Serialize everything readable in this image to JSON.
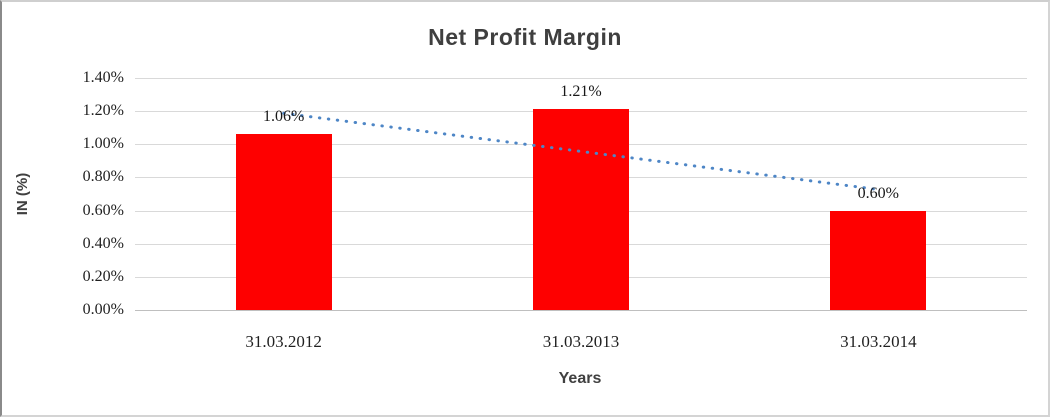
{
  "chart": {
    "title": "Net Profit Margin",
    "colors": {
      "bar": "#fe0000",
      "trendline": "#4e86c6",
      "gridline": "#d9d9d9",
      "axis_line": "#bfbfbf",
      "title_text": "#3f3f3f",
      "tick_text": "#1f1f1f"
    }
  },
  "chart_data": {
    "type": "bar",
    "title": "Net Profit Margin",
    "xlabel": "Years",
    "ylabel": "IN (%)",
    "categories": [
      "31.03.2012",
      "31.03.2013",
      "31.03.2014"
    ],
    "values": [
      1.06,
      1.21,
      0.6
    ],
    "data_labels": [
      "1.06%",
      "1.21%",
      "0.60%"
    ],
    "y_ticks": [
      "0.00%",
      "0.20%",
      "0.40%",
      "0.60%",
      "0.80%",
      "1.00%",
      "1.20%",
      "1.40%"
    ],
    "ylim": [
      0,
      1.4
    ],
    "grid": true,
    "legend": "none",
    "trendline": {
      "style": "dotted",
      "start_value": 1.187,
      "end_value": 0.727
    }
  }
}
